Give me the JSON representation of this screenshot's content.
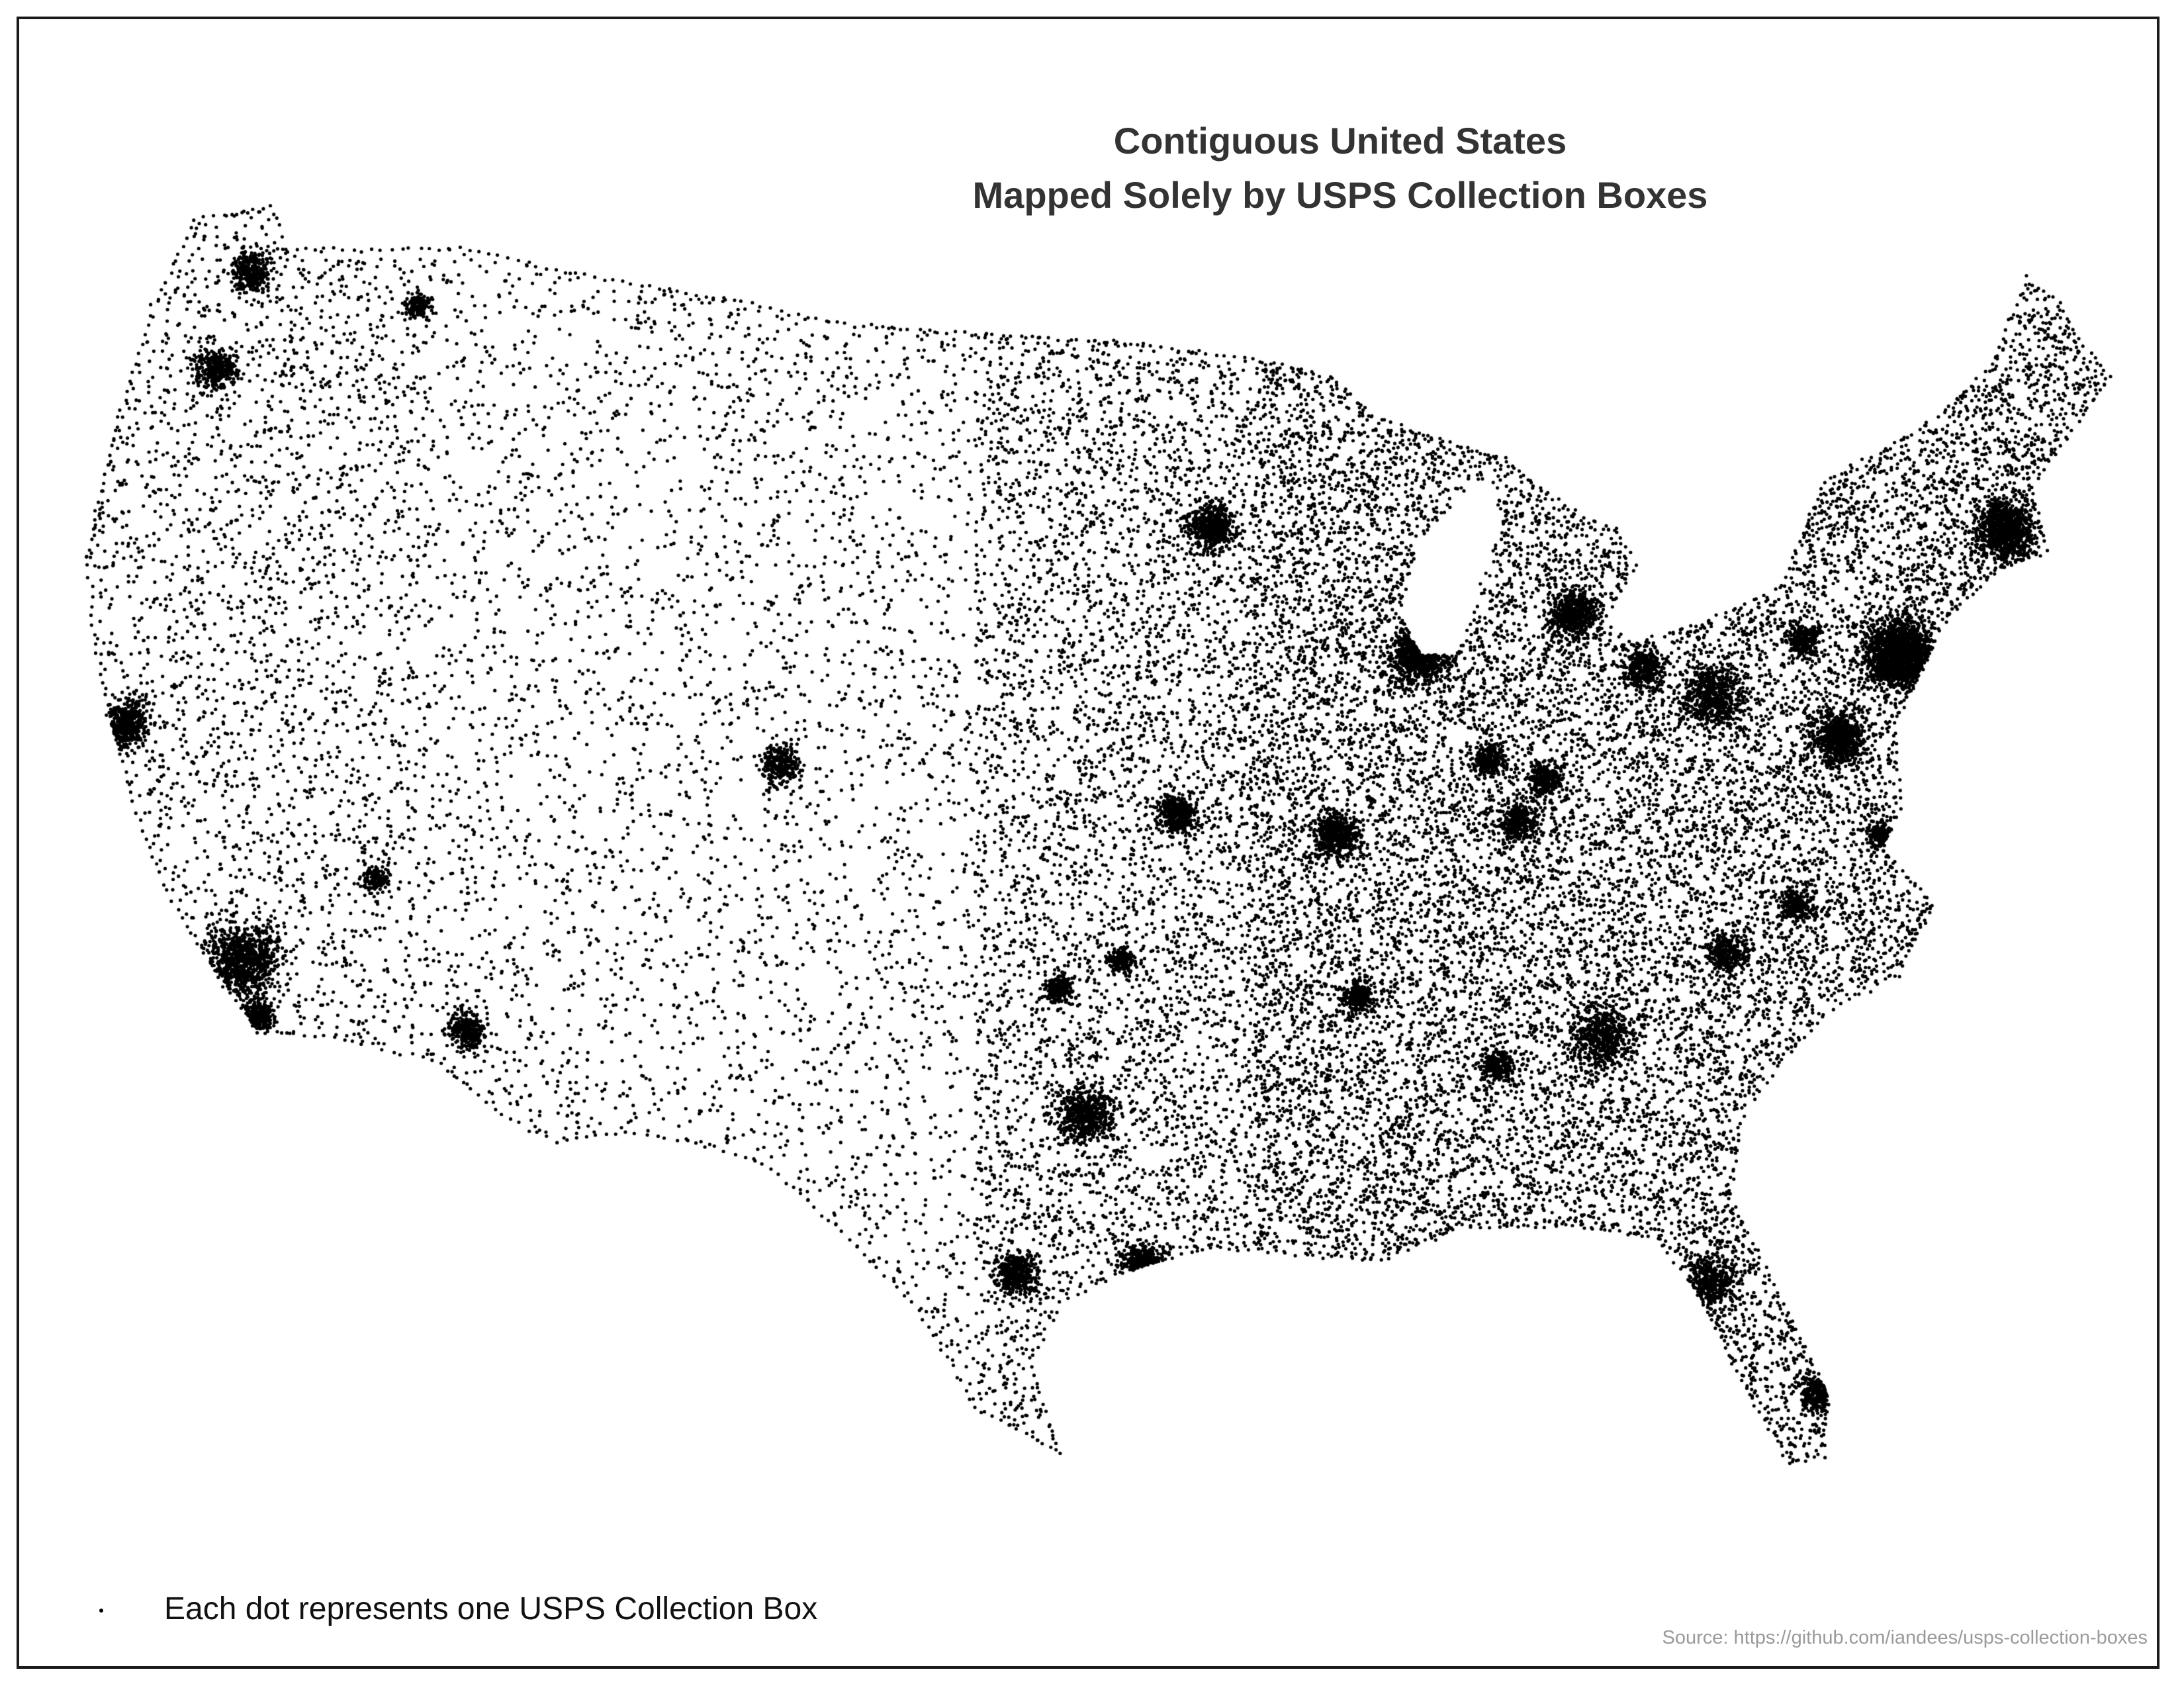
{
  "map": {
    "title_line1": "Contiguous United States",
    "title_line2": "Mapped Solely by USPS Collection Boxes",
    "projection": "Albers equal-area (contiguous US)",
    "dot_color": "#000000",
    "background_color": "#ffffff",
    "border_color": "#1a1a1a",
    "title_color": "#333333",
    "source_color": "#9a9a9a"
  },
  "legend": {
    "symbol": "dot",
    "label": "Each dot represents one USPS Collection Box"
  },
  "source": {
    "text": "Source: https://github.com/iandees/usps-collection-boxes"
  }
}
